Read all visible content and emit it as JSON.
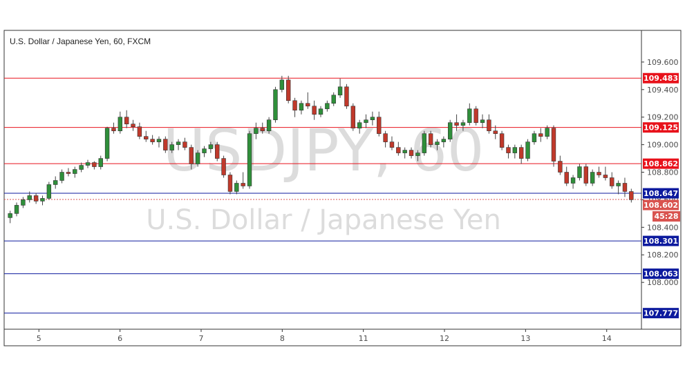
{
  "chart_data": {
    "type": "candlestick",
    "title": "U.S. Dollar / Japanese Yen, 60, FXCM",
    "watermark_symbol": "USDJPY, 60",
    "watermark_name": "U.S. Dollar / Japanese Yen",
    "ylim": [
      107.66,
      109.83
    ],
    "xlim": [
      0,
      110
    ],
    "y_ticks": [
      "109.600",
      "109.400",
      "109.200",
      "109.000",
      "108.800",
      "108.600",
      "108.400",
      "108.200",
      "108.000"
    ],
    "y_tick_values": [
      109.6,
      109.4,
      109.2,
      109.0,
      108.8,
      108.6,
      108.4,
      108.2,
      108.0
    ],
    "x_ticks": [
      {
        "label": "5",
        "x": 6
      },
      {
        "label": "6",
        "x": 20
      },
      {
        "label": "7",
        "x": 34
      },
      {
        "label": "8",
        "x": 48
      },
      {
        "label": "11",
        "x": 62
      },
      {
        "label": "12",
        "x": 76
      },
      {
        "label": "13",
        "x": 90
      },
      {
        "label": "14",
        "x": 104
      }
    ],
    "levels": [
      {
        "value": 109.483,
        "label": "109.483",
        "color": "#e8121b"
      },
      {
        "value": 109.125,
        "label": "109.125",
        "color": "#e8121b"
      },
      {
        "value": 108.862,
        "label": "108.862",
        "color": "#e8121b"
      },
      {
        "value": 108.647,
        "label": "108.647",
        "color": "#0c1a9e"
      },
      {
        "value": 108.301,
        "label": "108.301",
        "color": "#0c1a9e"
      },
      {
        "value": 108.063,
        "label": "108.063",
        "color": "#0c1a9e"
      },
      {
        "value": 107.777,
        "label": "107.777",
        "color": "#0c1a9e"
      }
    ],
    "last_price": {
      "value": 108.602,
      "label": "108.602",
      "countdown": "45:28",
      "color": "#d9534f"
    },
    "up_color": "#2f8f3a",
    "down_color": "#c0392b",
    "candles": [
      [
        108.47,
        108.52,
        108.43,
        108.5
      ],
      [
        108.5,
        108.58,
        108.48,
        108.56
      ],
      [
        108.56,
        108.62,
        108.54,
        108.6
      ],
      [
        108.6,
        108.66,
        108.58,
        108.63
      ],
      [
        108.63,
        108.65,
        108.57,
        108.59
      ],
      [
        108.59,
        108.63,
        108.56,
        108.61
      ],
      [
        108.61,
        108.73,
        108.6,
        108.71
      ],
      [
        108.71,
        108.77,
        108.68,
        108.74
      ],
      [
        108.74,
        108.82,
        108.72,
        108.8
      ],
      [
        108.8,
        108.83,
        108.77,
        108.79
      ],
      [
        108.79,
        108.84,
        108.76,
        108.82
      ],
      [
        108.82,
        108.87,
        108.8,
        108.85
      ],
      [
        108.85,
        108.89,
        108.83,
        108.87
      ],
      [
        108.87,
        108.88,
        108.82,
        108.84
      ],
      [
        108.84,
        108.92,
        108.82,
        108.9
      ],
      [
        108.9,
        109.13,
        108.88,
        109.12
      ],
      [
        109.12,
        109.16,
        109.08,
        109.1
      ],
      [
        109.1,
        109.24,
        109.08,
        109.2
      ],
      [
        109.2,
        109.25,
        109.12,
        109.15
      ],
      [
        109.15,
        109.18,
        109.1,
        109.13
      ],
      [
        109.13,
        109.16,
        109.04,
        109.06
      ],
      [
        109.06,
        109.1,
        109.02,
        109.04
      ],
      [
        109.04,
        109.07,
        109.0,
        109.02
      ],
      [
        109.02,
        109.06,
        108.98,
        109.04
      ],
      [
        109.04,
        109.06,
        108.94,
        108.96
      ],
      [
        108.96,
        109.02,
        108.94,
        109.0
      ],
      [
        109.0,
        109.04,
        108.96,
        109.02
      ],
      [
        109.02,
        109.05,
        108.96,
        108.98
      ],
      [
        108.98,
        109.0,
        108.82,
        108.86
      ],
      [
        108.86,
        108.96,
        108.84,
        108.94
      ],
      [
        108.94,
        108.99,
        108.91,
        108.97
      ],
      [
        108.97,
        109.02,
        108.94,
        109.0
      ],
      [
        109.0,
        109.02,
        108.88,
        108.9
      ],
      [
        108.9,
        108.92,
        108.76,
        108.78
      ],
      [
        108.78,
        108.8,
        108.64,
        108.66
      ],
      [
        108.66,
        108.74,
        108.64,
        108.72
      ],
      [
        108.72,
        108.8,
        108.68,
        108.7
      ],
      [
        108.7,
        109.1,
        108.68,
        109.08
      ],
      [
        109.08,
        109.16,
        109.04,
        109.12
      ],
      [
        109.12,
        109.16,
        109.08,
        109.1
      ],
      [
        109.1,
        109.2,
        109.08,
        109.18
      ],
      [
        109.18,
        109.42,
        109.16,
        109.4
      ],
      [
        109.4,
        109.5,
        109.38,
        109.47
      ],
      [
        109.47,
        109.5,
        109.3,
        109.32
      ],
      [
        109.32,
        109.34,
        109.2,
        109.25
      ],
      [
        109.25,
        109.32,
        109.22,
        109.3
      ],
      [
        109.3,
        109.38,
        109.26,
        109.28
      ],
      [
        109.28,
        109.32,
        109.18,
        109.22
      ],
      [
        109.22,
        109.28,
        109.2,
        109.26
      ],
      [
        109.26,
        109.32,
        109.24,
        109.3
      ],
      [
        109.3,
        109.38,
        109.28,
        109.36
      ],
      [
        109.36,
        109.48,
        109.34,
        109.42
      ],
      [
        109.42,
        109.44,
        109.26,
        109.28
      ],
      [
        109.28,
        109.3,
        109.1,
        109.12
      ],
      [
        109.12,
        109.18,
        109.08,
        109.16
      ],
      [
        109.16,
        109.22,
        109.12,
        109.18
      ],
      [
        109.18,
        109.24,
        109.14,
        109.2
      ],
      [
        109.2,
        109.24,
        109.06,
        109.08
      ],
      [
        109.08,
        109.1,
        108.98,
        109.02
      ],
      [
        109.02,
        109.06,
        108.96,
        108.98
      ],
      [
        108.98,
        109.02,
        108.92,
        108.94
      ],
      [
        108.94,
        108.98,
        108.9,
        108.96
      ],
      [
        108.96,
        108.98,
        108.9,
        108.92
      ],
      [
        108.92,
        108.96,
        108.88,
        108.94
      ],
      [
        108.94,
        109.1,
        108.92,
        109.08
      ],
      [
        109.08,
        109.1,
        108.98,
        109.0
      ],
      [
        109.0,
        109.04,
        108.96,
        109.02
      ],
      [
        109.02,
        109.06,
        108.98,
        109.04
      ],
      [
        109.04,
        109.18,
        109.02,
        109.16
      ],
      [
        109.16,
        109.22,
        109.1,
        109.14
      ],
      [
        109.14,
        109.18,
        109.1,
        109.16
      ],
      [
        109.16,
        109.3,
        109.14,
        109.26
      ],
      [
        109.26,
        109.28,
        109.14,
        109.16
      ],
      [
        109.16,
        109.22,
        109.12,
        109.18
      ],
      [
        109.18,
        109.22,
        109.08,
        109.1
      ],
      [
        109.1,
        109.14,
        109.04,
        109.08
      ],
      [
        109.08,
        109.1,
        108.96,
        108.98
      ],
      [
        108.98,
        109.0,
        108.9,
        108.94
      ],
      [
        108.94,
        109.0,
        108.9,
        108.98
      ],
      [
        108.98,
        109.0,
        108.86,
        108.9
      ],
      [
        108.9,
        109.04,
        108.88,
        109.02
      ],
      [
        109.02,
        109.1,
        109.0,
        109.08
      ],
      [
        109.08,
        109.12,
        109.02,
        109.06
      ],
      [
        109.06,
        109.14,
        109.04,
        109.12
      ],
      [
        109.12,
        109.14,
        108.84,
        108.88
      ],
      [
        108.88,
        108.92,
        108.78,
        108.8
      ],
      [
        108.8,
        108.84,
        108.7,
        108.72
      ],
      [
        108.72,
        108.78,
        108.68,
        108.76
      ],
      [
        108.76,
        108.86,
        108.74,
        108.84
      ],
      [
        108.84,
        108.86,
        108.7,
        108.72
      ],
      [
        108.72,
        108.82,
        108.7,
        108.8
      ],
      [
        108.8,
        108.84,
        108.76,
        108.78
      ],
      [
        108.78,
        108.84,
        108.74,
        108.76
      ],
      [
        108.76,
        108.8,
        108.68,
        108.7
      ],
      [
        108.7,
        108.74,
        108.64,
        108.72
      ],
      [
        108.72,
        108.76,
        108.62,
        108.66
      ],
      [
        108.66,
        108.68,
        108.58,
        108.6
      ]
    ]
  }
}
